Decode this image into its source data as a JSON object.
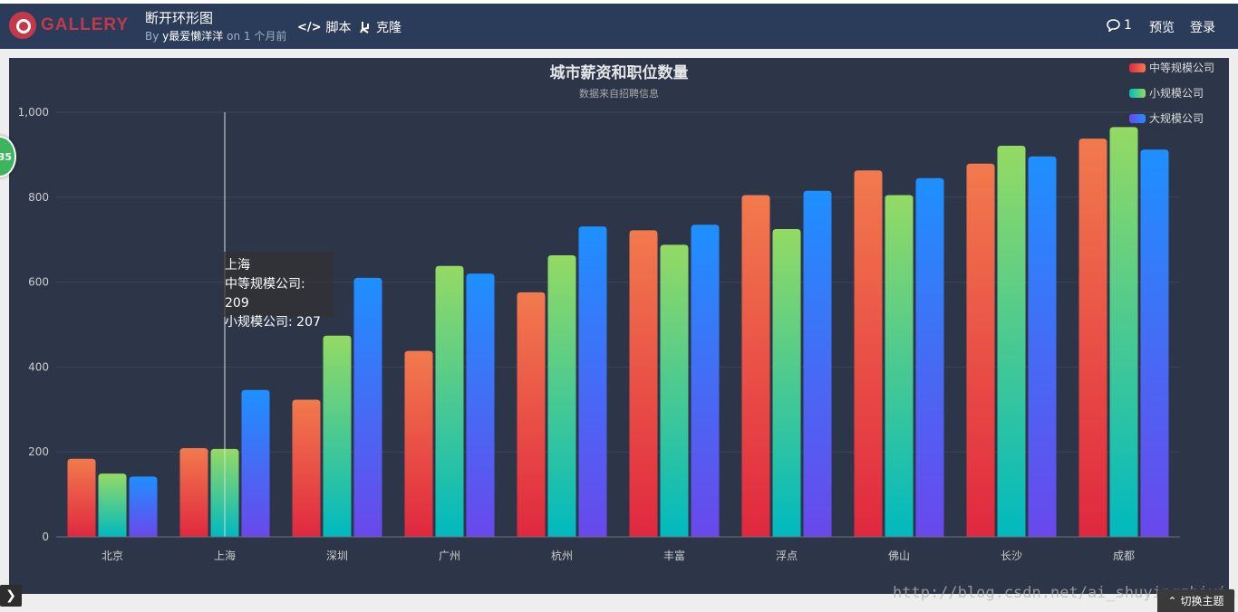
{
  "header": {
    "logo_text": "GALLERY",
    "title": "断开环形图",
    "by_prefix": "By",
    "author": "y最爱懒洋洋",
    "time": "on 1 个月前",
    "script_label": "脚本",
    "clone_label": "克隆",
    "comment_count": "1",
    "preview_label": "预览",
    "login_label": "登录",
    "colors": {
      "bar": "#2a3c5a",
      "logo": "#c23a4a"
    }
  },
  "badge_text": "35",
  "tooltip": {
    "title": "上海",
    "line1": "中等规模公司: 209",
    "line2": "小规模公司: 207"
  },
  "footer": {
    "switch_theme_label": "切换主题",
    "watermark": "http://blog.csdn.net/ai_shuyingzhixia"
  },
  "chart_data": {
    "type": "bar",
    "title": "城市薪资和职位数量",
    "subtitle": "数据来自招聘信息",
    "categories": [
      "北京",
      "上海",
      "深圳",
      "广州",
      "杭州",
      "丰富",
      "浮点",
      "佛山",
      "长沙",
      "成都"
    ],
    "series": [
      {
        "name": "中等规模公司",
        "values": [
          184,
          209,
          323,
          438,
          576,
          722,
          805,
          863,
          879,
          938
        ],
        "gradient": [
          "#f27a4d",
          "#e0283f"
        ]
      },
      {
        "name": "小规模公司",
        "values": [
          149,
          207,
          474,
          638,
          663,
          688,
          725,
          805,
          921,
          965
        ],
        "gradient": [
          "#94da63",
          "#00b9c0"
        ]
      },
      {
        "name": "大规模公司",
        "values": [
          142,
          346,
          610,
          620,
          731,
          735,
          815,
          845,
          896,
          912
        ],
        "gradient": [
          "#1e90ff",
          "#6a48eb"
        ]
      }
    ],
    "ylim": [
      0,
      1000
    ],
    "yticks": [
      0,
      200,
      400,
      600,
      800,
      1000
    ],
    "ytick_labels": [
      "0",
      "200",
      "400",
      "600",
      "800",
      "1,000"
    ],
    "grid": true,
    "legend_position": "top-right",
    "highlighted_category": "上海",
    "colors": {
      "background": "#2c3648",
      "grid": "#3a4558",
      "text": "#cccccc",
      "title": "#e6e6e6"
    }
  }
}
